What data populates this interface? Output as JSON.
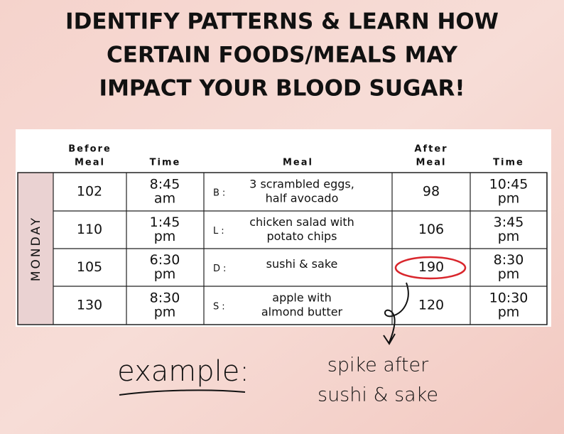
{
  "title": [
    "IDENTIFY PATTERNS & LEARN HOW",
    "CERTAIN FOODS/MEALS MAY",
    "IMPACT YOUR BLOOD SUGAR!"
  ],
  "table": {
    "headers": [
      [
        "Before",
        "Meal"
      ],
      [
        "Time"
      ],
      [
        "Meal"
      ],
      [
        "After",
        "Meal"
      ],
      [
        "Time"
      ]
    ],
    "day": "MONDAY",
    "rows": [
      {
        "before": "102",
        "time": [
          "8:45",
          "am"
        ],
        "meal_type": "B:",
        "meal": [
          "3 scrambled eggs,",
          "half avocado"
        ],
        "after": "98",
        "after_time": [
          "10:45",
          "pm"
        ]
      },
      {
        "before": "110",
        "time": [
          "1:45",
          "pm"
        ],
        "meal_type": "L:",
        "meal": [
          "chicken salad with",
          "potato chips"
        ],
        "after": "106",
        "after_time": [
          "3:45",
          "pm"
        ]
      },
      {
        "before": "105",
        "time": [
          "6:30",
          "pm"
        ],
        "meal_type": "D:",
        "meal": [
          "sushi & sake"
        ],
        "after": "190",
        "after_time": [
          "8:30",
          "pm"
        ]
      },
      {
        "before": "130",
        "time": [
          "8:30",
          "pm"
        ],
        "meal_type": "S:",
        "meal": [
          "apple with",
          "almond butter"
        ],
        "after": "120",
        "after_time": [
          "10:30",
          "pm"
        ]
      }
    ]
  },
  "annotation": {
    "example": "example:",
    "note": [
      "spike after",
      "sushi & sake"
    ]
  }
}
